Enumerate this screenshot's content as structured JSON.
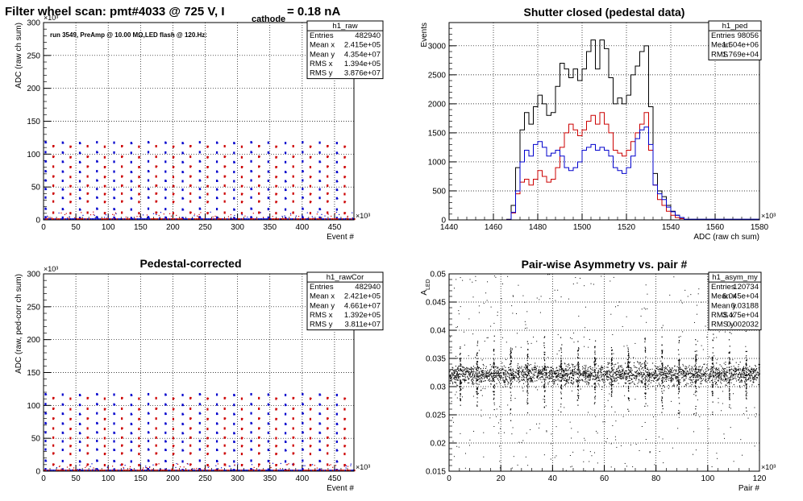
{
  "chart_data": [
    {
      "id": "h1_raw",
      "type": "scatter",
      "title": "Filter wheel scan: pmt#4033 @   725 V, I",
      "title_subscript": "cathode",
      "title_suffix": "= 0.18 nA",
      "subtitle": "run 3549, PreAmp @ 10.00 MΩ,LED flash @  120.Hz:",
      "xlabel": "Event #",
      "ylabel": "ADC (raw ch sum)",
      "x_exponent": "×10³",
      "y_exponent": "×10³",
      "xlim": [
        0,
        480
      ],
      "ylim": [
        0,
        300
      ],
      "x_ticks": [
        "0",
        "50",
        "100",
        "150",
        "200",
        "250",
        "300",
        "350",
        "400",
        "450"
      ],
      "y_ticks": [
        "0",
        "50",
        "100",
        "150",
        "200",
        "250",
        "300"
      ],
      "grid": true,
      "stats": {
        "name": "h1_raw",
        "rows": [
          [
            "Entries",
            "482940"
          ],
          [
            "Mean x",
            "2.415e+05"
          ],
          [
            "Mean y",
            "4.354e+07"
          ],
          [
            "RMS x",
            "1.394e+05"
          ],
          [
            "RMS y",
            "3.876e+07"
          ]
        ]
      },
      "band_levels_blue": [
        118,
        103,
        89,
        74,
        60,
        47,
        34,
        17,
        4
      ],
      "band_levels_red": [
        112,
        96,
        81,
        66,
        52,
        40,
        28,
        11
      ],
      "flash_period": 26.5,
      "series_colors": [
        "#0000cc",
        "#cc0000"
      ]
    },
    {
      "id": "h1_ped",
      "type": "line",
      "title": "Shutter closed (pedestal data)",
      "xlabel": "ADC (raw ch sum)",
      "ylabel": "Events",
      "x_exponent": "×10³",
      "xlim": [
        1440,
        1580
      ],
      "ylim": [
        0,
        3400
      ],
      "x_ticks": [
        "1440",
        "1460",
        "1480",
        "1500",
        "1520",
        "1540",
        "1560",
        "1580"
      ],
      "y_ticks": [
        "0",
        "500",
        "1000",
        "1500",
        "2000",
        "2500",
        "3000"
      ],
      "grid": true,
      "stats": {
        "name": "h1_ped",
        "rows": [
          [
            "Entries",
            "98056"
          ],
          [
            "Mean",
            "1.504e+06"
          ],
          [
            "RMS",
            "1.769e+04"
          ]
        ]
      },
      "x": [
        1440,
        1466,
        1468,
        1470,
        1472,
        1474,
        1476,
        1478,
        1480,
        1482,
        1484,
        1486,
        1488,
        1490,
        1492,
        1494,
        1496,
        1498,
        1500,
        1502,
        1504,
        1506,
        1508,
        1510,
        1512,
        1514,
        1516,
        1518,
        1520,
        1522,
        1524,
        1526,
        1528,
        1530,
        1532,
        1534,
        1536,
        1538,
        1540,
        1542,
        1544,
        1546,
        1580
      ],
      "series": [
        {
          "color": "#000000",
          "values": [
            0,
            10,
            250,
            900,
            1550,
            1850,
            1650,
            1950,
            2150,
            2000,
            1800,
            1850,
            2300,
            2700,
            2600,
            2450,
            2600,
            2400,
            2600,
            2900,
            3100,
            2600,
            3100,
            2950,
            2450,
            2000,
            2100,
            2000,
            2150,
            2500,
            2650,
            2900,
            3000,
            1950,
            800,
            500,
            400,
            250,
            150,
            80,
            40,
            10,
            0
          ]
        },
        {
          "color": "#cc0000",
          "values": [
            0,
            5,
            120,
            450,
            650,
            700,
            600,
            700,
            850,
            750,
            650,
            700,
            900,
            1250,
            1500,
            1650,
            1550,
            1450,
            1550,
            1700,
            1800,
            1650,
            1850,
            1650,
            1500,
            1200,
            1150,
            1100,
            1200,
            1350,
            1500,
            1650,
            1850,
            1200,
            600,
            350,
            250,
            150,
            80,
            40,
            20,
            5,
            0
          ]
        },
        {
          "color": "#0000cc",
          "values": [
            0,
            5,
            130,
            500,
            1000,
            1200,
            1100,
            1300,
            1350,
            1250,
            1100,
            1150,
            1200,
            1100,
            900,
            850,
            900,
            1000,
            1200,
            1250,
            1300,
            1200,
            1250,
            1200,
            1100,
            900,
            850,
            800,
            900,
            1100,
            1400,
            1550,
            1600,
            1300,
            600,
            450,
            350,
            220,
            140,
            80,
            40,
            10,
            0
          ]
        }
      ]
    },
    {
      "id": "h1_rawCor",
      "type": "scatter",
      "title": "Pedestal-corrected",
      "xlabel": "Event #",
      "ylabel": "ADC (raw, ped-corr ch sum)",
      "x_exponent": "×10³",
      "y_exponent": "×10³",
      "xlim": [
        0,
        480
      ],
      "ylim": [
        0,
        300
      ],
      "x_ticks": [
        "0",
        "50",
        "100",
        "150",
        "200",
        "250",
        "300",
        "350",
        "400",
        "450"
      ],
      "y_ticks": [
        "0",
        "50",
        "100",
        "150",
        "200",
        "250",
        "300"
      ],
      "grid": true,
      "stats": {
        "name": "h1_rawCor",
        "rows": [
          [
            "Entries",
            "482940"
          ],
          [
            "Mean x",
            "2.421e+05"
          ],
          [
            "Mean y",
            "4.661e+07"
          ],
          [
            "RMS x",
            "1.392e+05"
          ],
          [
            "RMS y",
            "3.811e+07"
          ]
        ]
      },
      "band_levels_blue": [
        117,
        102,
        88,
        73,
        59,
        46,
        33,
        16,
        3
      ],
      "band_levels_red": [
        111,
        95,
        80,
        65,
        51,
        39,
        27,
        10
      ],
      "flash_period": 26.5,
      "series_colors": [
        "#0000cc",
        "#cc0000"
      ]
    },
    {
      "id": "h1_asym_my",
      "type": "scatter",
      "title": "Pair-wise Asymmetry vs. pair #",
      "xlabel": "Pair #",
      "ylabel": "A",
      "ylabel_subscript": "LED",
      "x_exponent": "×10³",
      "xlim": [
        0,
        120
      ],
      "ylim": [
        0.015,
        0.05
      ],
      "x_ticks": [
        "0",
        "20",
        "40",
        "60",
        "80",
        "100",
        "120"
      ],
      "y_ticks": [
        "0.015",
        "0.02",
        "0.025",
        "0.03",
        "0.035",
        "0.04",
        "0.045",
        "0.05"
      ],
      "grid": true,
      "stats": {
        "name": "h1_asym_my",
        "rows": [
          [
            "Entries",
            "120734"
          ],
          [
            "Mean x",
            "6.045e+04"
          ],
          [
            "Mean y",
            "0.03188"
          ],
          [
            "RMS x",
            "3.475e+04"
          ],
          [
            "RMS y",
            "0.002032"
          ]
        ]
      },
      "center": 0.0322,
      "spike_period": 6.5,
      "spike_first": 4.2,
      "series_colors": [
        "#000000"
      ]
    }
  ]
}
